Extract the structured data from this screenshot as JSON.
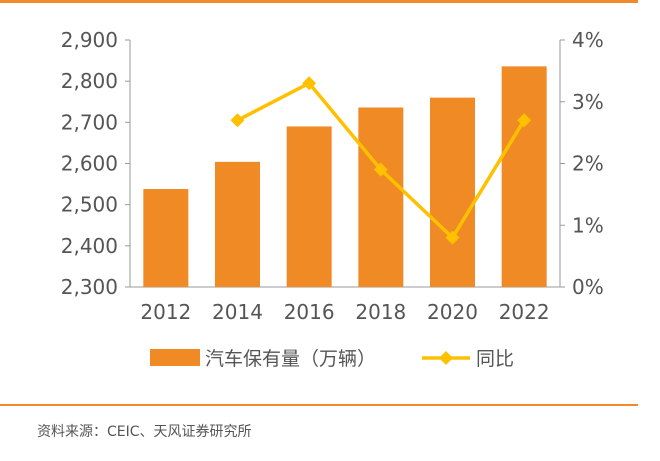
{
  "chart_data": {
    "type": "bar",
    "categories": [
      "2012",
      "2014",
      "2016",
      "2018",
      "2020",
      "2022"
    ],
    "series": [
      {
        "name": "汽车保有量（万辆）",
        "type": "bar",
        "axis": "left",
        "values": [
          2538,
          2604,
          2690,
          2736,
          2760,
          2836
        ]
      },
      {
        "name": "同比",
        "type": "line",
        "axis": "right",
        "values": [
          null,
          2.7,
          3.3,
          1.9,
          0.8,
          2.7
        ]
      }
    ],
    "y_left": {
      "min": 2300,
      "max": 2900,
      "ticks": [
        "2,300",
        "2,400",
        "2,500",
        "2,600",
        "2,700",
        "2,800",
        "2,900"
      ]
    },
    "y_right": {
      "min": 0,
      "max": 4,
      "ticks": [
        "0%",
        "1%",
        "2%",
        "3%",
        "4%"
      ]
    },
    "grid": false,
    "legend_position": "bottom",
    "colors": {
      "bar": "#F08A24",
      "line": "#FFC000",
      "axis": "#9A9A9A",
      "rule": "#F08A2A"
    }
  },
  "source": "资料来源：CEIC、天风证券研究所"
}
